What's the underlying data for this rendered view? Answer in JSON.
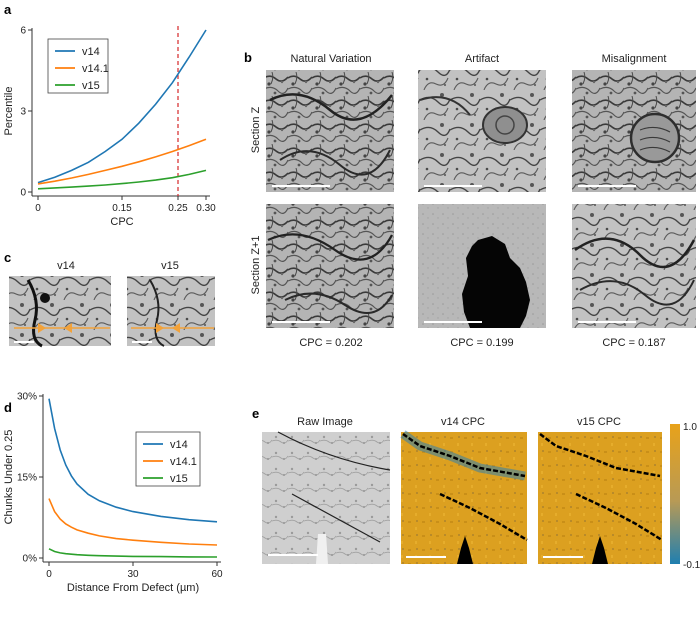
{
  "figure": {
    "panels": {
      "a": {
        "label": "a"
      },
      "b": {
        "label": "b",
        "columns": [
          "Natural Variation",
          "Artifact",
          "Misalignment"
        ],
        "rows": [
          "Section Z",
          "Section Z+1"
        ],
        "cpc_values": [
          "CPC = 0.202",
          "CPC = 0.199",
          "CPC = 0.187"
        ]
      },
      "c": {
        "label": "c",
        "titles": [
          "v14",
          "v15"
        ]
      },
      "d": {
        "label": "d"
      },
      "e": {
        "label": "e",
        "titles": [
          "Raw Image",
          "v14 CPC",
          "v15 CPC"
        ],
        "colorbar_max": "1.0",
        "colorbar_min": "-0.1"
      }
    }
  },
  "chart_data": [
    {
      "type": "line",
      "panel": "a",
      "xlabel": "CPC",
      "ylabel": "Percentile",
      "xlim": [
        0,
        0.3
      ],
      "ylim": [
        0,
        6
      ],
      "xticks": [
        0,
        0.15,
        0.25,
        0.3
      ],
      "xtick_labels": [
        "0",
        "0.15",
        "0.25",
        "0.30"
      ],
      "yticks": [
        0,
        3,
        6
      ],
      "ytick_labels": [
        "0",
        "3",
        "6"
      ],
      "vline": 0.25,
      "legend_position": "top-left",
      "x": [
        0,
        0.03,
        0.06,
        0.09,
        0.12,
        0.15,
        0.18,
        0.21,
        0.24,
        0.27,
        0.3
      ],
      "series": [
        {
          "name": "v14",
          "color": "#1f77b4",
          "values": [
            0.35,
            0.55,
            0.8,
            1.1,
            1.5,
            1.95,
            2.55,
            3.25,
            4.05,
            5.0,
            6.0
          ]
        },
        {
          "name": "v14.1",
          "color": "#ff7f0e",
          "values": [
            0.3,
            0.4,
            0.52,
            0.65,
            0.8,
            0.95,
            1.12,
            1.3,
            1.5,
            1.72,
            1.95
          ]
        },
        {
          "name": "v15",
          "color": "#2ca02c",
          "values": [
            0.12,
            0.15,
            0.18,
            0.22,
            0.26,
            0.31,
            0.37,
            0.44,
            0.53,
            0.65,
            0.8
          ]
        }
      ]
    },
    {
      "type": "line",
      "panel": "d",
      "xlabel": "Distance From Defect (µm)",
      "ylabel": "Chunks Under 0.25",
      "xlim": [
        0,
        60
      ],
      "ylim": [
        0,
        30
      ],
      "xticks": [
        0,
        30,
        60
      ],
      "xtick_labels": [
        "0",
        "30",
        "60"
      ],
      "yticks": [
        0,
        15,
        30
      ],
      "ytick_labels": [
        "0%",
        "15%",
        "30%"
      ],
      "legend_position": "top-right",
      "x": [
        0,
        2,
        4,
        6,
        8,
        10,
        14,
        18,
        24,
        30,
        40,
        50,
        60
      ],
      "series": [
        {
          "name": "v14",
          "color": "#1f77b4",
          "values": [
            29.5,
            24,
            20,
            17.2,
            15.2,
            13.7,
            11.8,
            10.6,
            9.4,
            8.6,
            7.7,
            7.1,
            6.7
          ]
        },
        {
          "name": "v14.1",
          "color": "#ff7f0e",
          "values": [
            11,
            8.6,
            7.2,
            6.3,
            5.7,
            5.2,
            4.6,
            4.1,
            3.6,
            3.3,
            2.9,
            2.6,
            2.4
          ]
        },
        {
          "name": "v15",
          "color": "#2ca02c",
          "values": [
            1.7,
            1.2,
            0.95,
            0.8,
            0.7,
            0.62,
            0.5,
            0.42,
            0.35,
            0.3,
            0.25,
            0.2,
            0.18
          ]
        }
      ]
    }
  ],
  "colors": {
    "em_gray": "#a9a9a9",
    "cpc_orange": "#e0a019",
    "cpc_blue": "#2f7fae",
    "vline": "#d62728"
  }
}
